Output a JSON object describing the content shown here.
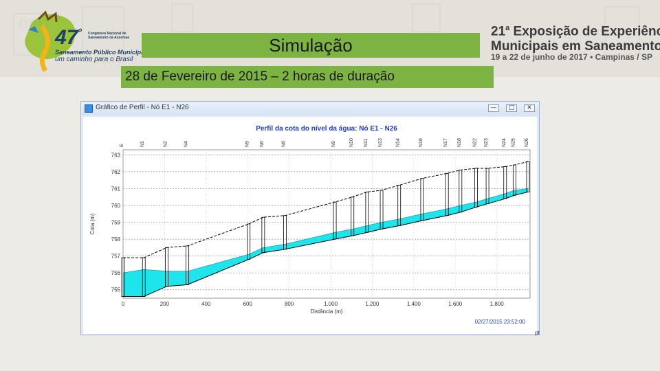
{
  "header": {
    "logo_number": "47",
    "logo_degree": "º",
    "logo_congress": "Congresso Nacional de Saneamento da Assemae",
    "logo_line1": "Saneamento Público Municipal:",
    "logo_line2": "um caminho para o Brasil",
    "expo_sup": "a",
    "expo_line1_a": "21",
    "expo_line1_b": " Exposição de Experiências",
    "expo_line2": "Municipais em Saneamento",
    "expo_date": "19 a 22 de junho de 2017 • Campinas / SP"
  },
  "slide": {
    "title": "Simulação",
    "subtitle": "28 de Fevereiro de 2015 – 2 horas de duração"
  },
  "window": {
    "title": "Gráfico de Perfil - Nó E1 - N26",
    "btn_min": "—",
    "btn_max": "□",
    "btn_close": "✕",
    "corner": "pt"
  },
  "colors": {
    "water": "#1ee4ec",
    "banner_green": "#7cb342",
    "title_blue": "#1d3ec9"
  },
  "chart_data": {
    "type": "area",
    "title": "Perfil da cota do nível da água:  Nó E1 - N26",
    "xlabel": "Distância (m)",
    "ylabel": "Cota (m)",
    "xlim": [
      0,
      1960
    ],
    "ylim": [
      754.5,
      763.3
    ],
    "x_ticks": [
      "0",
      "200",
      "400",
      "600",
      "800",
      "1.000",
      "1.200",
      "1.400",
      "1.600",
      "1.800"
    ],
    "x_tick_values": [
      0,
      200,
      400,
      600,
      800,
      1000,
      1200,
      1400,
      1600,
      1800
    ],
    "y_ticks": [
      "755",
      "756",
      "757",
      "758",
      "759",
      "760",
      "761",
      "762",
      "763"
    ],
    "y_tick_values": [
      755,
      756,
      757,
      758,
      759,
      760,
      761,
      762,
      763
    ],
    "timestamp": "02/27/2015 23:52:00",
    "nodes": [
      {
        "name": "E",
        "x": 0,
        "ground": 756.9,
        "invert": 754.6
      },
      {
        "name": "N1",
        "x": 100,
        "ground": 756.9,
        "invert": 754.6
      },
      {
        "name": "N2",
        "x": 210,
        "ground": 757.5,
        "invert": 755.2
      },
      {
        "name": "N4",
        "x": 310,
        "ground": 757.6,
        "invert": 755.3
      },
      {
        "name": "N5",
        "x": 605,
        "ground": 758.9,
        "invert": 756.8
      },
      {
        "name": "N6",
        "x": 675,
        "ground": 759.3,
        "invert": 757.2
      },
      {
        "name": "N8",
        "x": 780,
        "ground": 759.4,
        "invert": 757.4
      },
      {
        "name": "N9",
        "x": 1020,
        "ground": 760.2,
        "invert": 758.0
      },
      {
        "name": "N10",
        "x": 1105,
        "ground": 760.5,
        "invert": 758.2
      },
      {
        "name": "N11",
        "x": 1175,
        "ground": 760.8,
        "invert": 758.4
      },
      {
        "name": "N13",
        "x": 1245,
        "ground": 760.9,
        "invert": 758.6
      },
      {
        "name": "N14",
        "x": 1330,
        "ground": 761.2,
        "invert": 758.8
      },
      {
        "name": "N16",
        "x": 1440,
        "ground": 761.6,
        "invert": 759.1
      },
      {
        "name": "N17",
        "x": 1560,
        "ground": 761.9,
        "invert": 759.4
      },
      {
        "name": "N18",
        "x": 1625,
        "ground": 762.1,
        "invert": 759.6
      },
      {
        "name": "N22",
        "x": 1700,
        "ground": 762.2,
        "invert": 759.9
      },
      {
        "name": "N23",
        "x": 1755,
        "ground": 762.2,
        "invert": 760.1
      },
      {
        "name": "N24",
        "x": 1840,
        "ground": 762.3,
        "invert": 760.4
      },
      {
        "name": "N25",
        "x": 1885,
        "ground": 762.4,
        "invert": 760.6
      },
      {
        "name": "N26",
        "x": 1950,
        "ground": 762.6,
        "invert": 760.8
      }
    ],
    "water_level": [
      756.0,
      756.2,
      756.1,
      756.1,
      757.1,
      757.5,
      757.7,
      758.4,
      758.6,
      758.8,
      759.0,
      759.2,
      759.5,
      759.8,
      760.0,
      760.2,
      760.4,
      760.7,
      760.9,
      761.0
    ]
  }
}
